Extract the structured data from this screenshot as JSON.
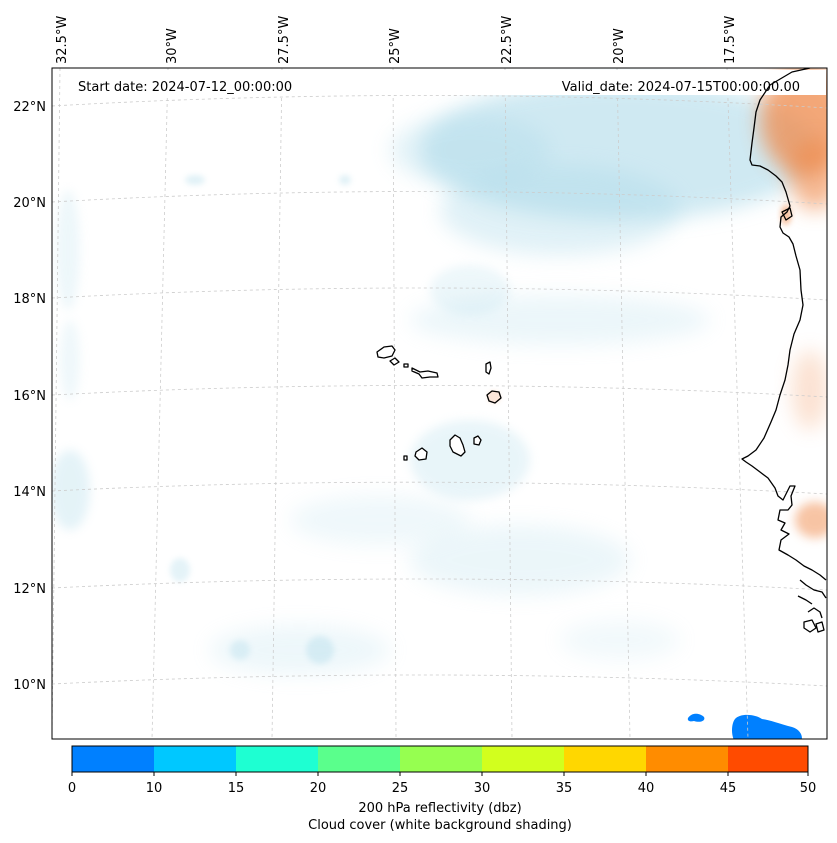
{
  "header": {
    "start_date": "Start date: 2024-07-12_00:00:00",
    "valid_date": "Valid_date: 2024-07-15T00:00:00.00"
  },
  "longitude_labels": [
    "32.5°W",
    "30°W",
    "27.5°W",
    "25°W",
    "22.5°W",
    "20°W",
    "17.5°W"
  ],
  "latitude_labels": [
    "22°N",
    "20°N",
    "18°N",
    "16°N",
    "14°N",
    "12°N",
    "10°N"
  ],
  "colorbar": {
    "ticks": [
      "0",
      "10",
      "15",
      "20",
      "25",
      "30",
      "35",
      "40",
      "45",
      "50"
    ],
    "colors": [
      "#0080ff",
      "#00c8ff",
      "#1effd2",
      "#5aff8c",
      "#96ff50",
      "#d2ff1e",
      "#ffd700",
      "#ff8c00",
      "#ff4b00"
    ],
    "label": "200 hPa reflectivity (dbz)",
    "sublabel": "Cloud cover (white background shading)"
  },
  "colors": {
    "cloud": "#a8d8e8",
    "desert": "#f08a4b",
    "coast": "#000000",
    "grid": "#cccccc"
  }
}
